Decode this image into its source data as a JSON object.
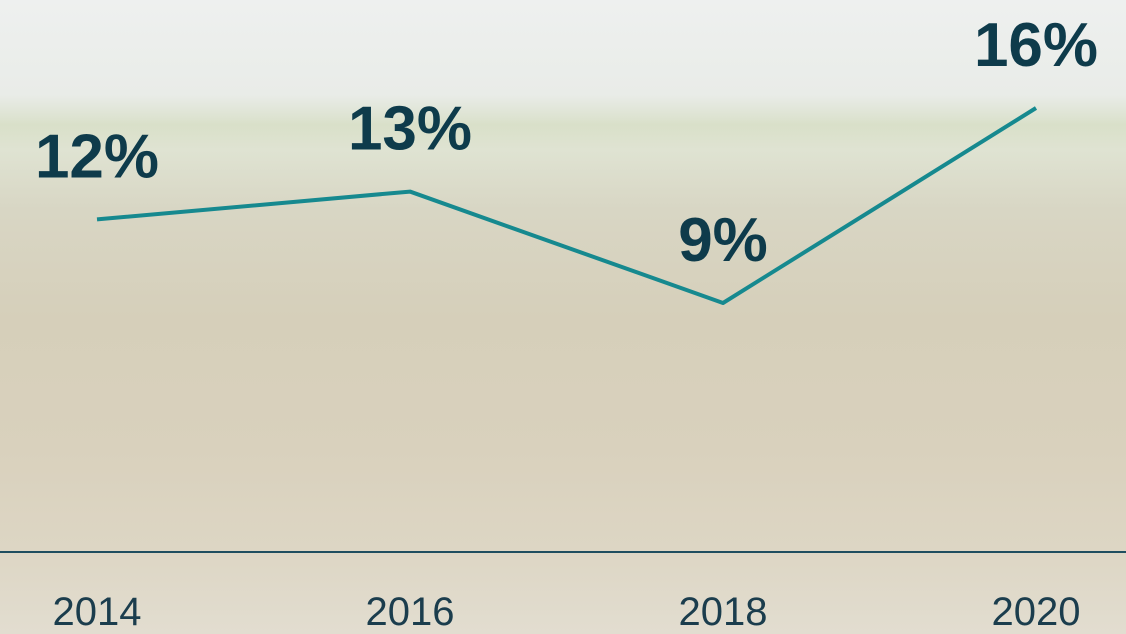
{
  "chart_data": {
    "type": "line",
    "x": [
      2014,
      2016,
      2018,
      2020
    ],
    "series": [
      {
        "color": "#16898f",
        "values": [
          12,
          13,
          9,
          16
        ],
        "value_labels": [
          "12%",
          "13%",
          "9%",
          "16%"
        ]
      }
    ]
  }
}
